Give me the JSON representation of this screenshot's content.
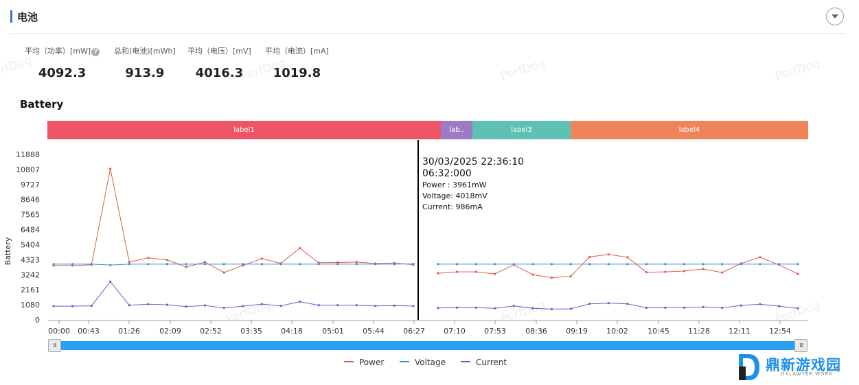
{
  "header": {
    "title": "电池"
  },
  "stats": [
    {
      "label": "平均（功率）[mW]",
      "value": "4092.3",
      "help": "?"
    },
    {
      "label": "总和(电池)[mWh]",
      "value": "913.9"
    },
    {
      "label": "平均（电压）[mV]",
      "value": "4016.3"
    },
    {
      "label": "平均（电流）[mA]",
      "value": "1019.8"
    }
  ],
  "section": {
    "title": "Battery"
  },
  "watermark": "PerfDog",
  "labels": [
    {
      "text": "label1",
      "color": "#ef5466"
    },
    {
      "text": "lab..",
      "color": "#9b7cc4"
    },
    {
      "text": "label3",
      "color": "#5ec1b3"
    },
    {
      "text": "label4",
      "color": "#ef8359"
    }
  ],
  "chart_data": {
    "type": "line",
    "ylabel": "Battery",
    "yticks": [
      "11888",
      "10807",
      "9727",
      "8646",
      "7565",
      "6484",
      "5404",
      "4323",
      "3242",
      "2161",
      "1080",
      "0"
    ],
    "ylim": [
      0,
      11888
    ],
    "xticks": [
      "00:00",
      "00:43",
      "01:26",
      "02:09",
      "02:52",
      "03:35",
      "04:18",
      "05:01",
      "05:44",
      "06:27",
      "07:10",
      "07:53",
      "08:36",
      "09:19",
      "10:02",
      "10:45",
      "11:28",
      "12:11",
      "12:54"
    ],
    "legend_position": "bottom",
    "series": [
      {
        "name": "Power",
        "color": "#e05a47",
        "segments": [
          [
            3900,
            3900,
            3950,
            10850,
            4150,
            4450,
            4300,
            3800,
            4150,
            3400,
            3900,
            4400,
            4050,
            5150,
            4100,
            4120,
            4150,
            4050,
            4080,
            3961
          ],
          [
            3350,
            3450,
            3450,
            3300,
            3950,
            3250,
            3030,
            3120,
            4520,
            4700,
            4500,
            3420,
            3450,
            3500,
            3650,
            3400,
            4050,
            4500,
            3950,
            3300
          ]
        ]
      },
      {
        "name": "Voltage",
        "color": "#3d8fe0",
        "segments": [
          [
            4000,
            4000,
            4000,
            3940,
            4000,
            4000,
            4000,
            4000,
            4000,
            4000,
            4000,
            4000,
            4000,
            4000,
            4000,
            4000,
            4000,
            4000,
            4000,
            4018
          ],
          [
            4000,
            4000,
            4000,
            4000,
            4000,
            4000,
            4000,
            4000,
            4000,
            4000,
            4000,
            4000,
            4000,
            4000,
            4000,
            4000,
            4000,
            4000,
            4000,
            4000
          ]
        ]
      },
      {
        "name": "Current",
        "color": "#7e52cc",
        "segments": [
          [
            980,
            980,
            1000,
            2750,
            1050,
            1120,
            1080,
            950,
            1030,
            850,
            980,
            1130,
            1000,
            1300,
            1050,
            1050,
            1050,
            1000,
            1020,
            986
          ],
          [
            850,
            880,
            880,
            830,
            1000,
            830,
            770,
            790,
            1150,
            1200,
            1150,
            870,
            870,
            880,
            920,
            860,
            1030,
            1120,
            980,
            820
          ]
        ]
      }
    ],
    "gap_note": "",
    "tooltip": {
      "datetime": "30/03/2025 22:36:10",
      "time": "06:32:000",
      "power": "Power  : 3961mW",
      "voltage": "Voltage: 4018mV",
      "current": "Current: 986mA"
    }
  },
  "legend": [
    "Power",
    "Voltage",
    "Current"
  ],
  "slider": {
    "left_grip": "III",
    "right_grip": "III"
  },
  "brand": {
    "name": "鼎新游戏园",
    "sub": "DXLAWYER.WORK"
  }
}
